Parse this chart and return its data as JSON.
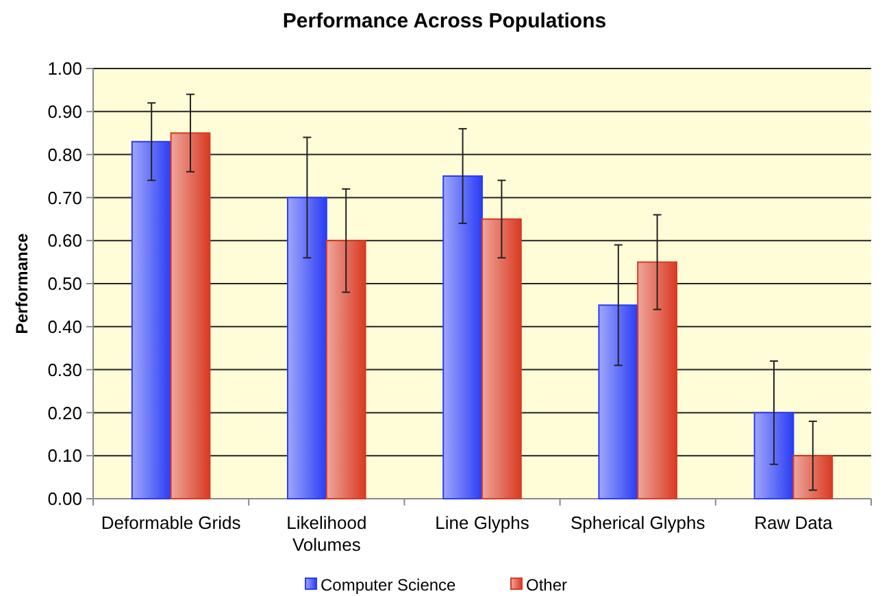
{
  "chart_data": {
    "type": "bar",
    "title": "Performance Across Populations",
    "ylabel": "Performance",
    "categories": [
      "Deformable Grids",
      "Likelihood Volumes",
      "Line Glyphs",
      "Spherical Glyphs",
      "Raw Data"
    ],
    "series": [
      {
        "name": "Computer Science",
        "color": "#2a3cf5",
        "values": [
          0.83,
          0.7,
          0.75,
          0.45,
          0.2
        ],
        "errors": [
          0.09,
          0.14,
          0.11,
          0.14,
          0.12
        ]
      },
      {
        "name": "Other",
        "color": "#d93a22",
        "values": [
          0.85,
          0.6,
          0.65,
          0.55,
          0.1
        ],
        "errors": [
          0.09,
          0.12,
          0.09,
          0.11,
          0.08
        ]
      }
    ],
    "ylim": [
      0,
      1
    ],
    "yticks": [
      {
        "value": 0,
        "label": "0.00"
      },
      {
        "value": 0.1,
        "label": "0.10"
      },
      {
        "value": 0.2,
        "label": "0.20"
      },
      {
        "value": 0.3,
        "label": "0.30"
      },
      {
        "value": 0.4,
        "label": "0.40"
      },
      {
        "value": 0.5,
        "label": "0.50"
      },
      {
        "value": 0.6,
        "label": "0.60"
      },
      {
        "value": 0.7,
        "label": "0.70"
      },
      {
        "value": 0.8,
        "label": "0.80"
      },
      {
        "value": 0.9,
        "label": "0.90"
      },
      {
        "value": 1,
        "label": "1.00"
      }
    ],
    "grid": "y",
    "legend": "bottom"
  }
}
